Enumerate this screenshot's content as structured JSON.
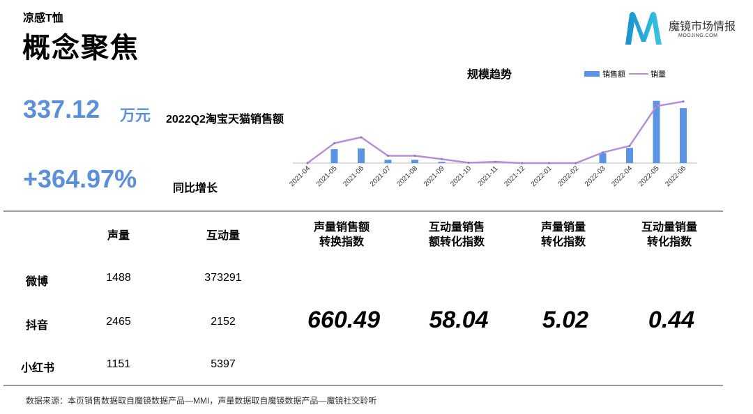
{
  "header": {
    "subtitle": "凉感T恤",
    "title": "概念聚焦"
  },
  "logo": {
    "name": "魔镜市场情报",
    "url": "MOOJING.COM"
  },
  "kpi": {
    "sales_value": "337.12",
    "sales_unit": "万元",
    "sales_label": "2022Q2淘宝天猫销售额",
    "yoy_value": "+364.97%",
    "yoy_label": "同比增长"
  },
  "chart_data": {
    "type": "bar+line",
    "title": "规模趋势",
    "legend_position": "top-right",
    "grid": false,
    "categories": [
      "2021-04",
      "2021-05",
      "2021-06",
      "2021-07",
      "2021-08",
      "2021-09",
      "2021-10",
      "2021-11",
      "2021-12",
      "2022-01",
      "2022-02",
      "2022-03",
      "2022-04",
      "2022-05",
      "2022-06"
    ],
    "series": [
      {
        "name": "销售额",
        "type": "bar",
        "color": "#5b94e3",
        "values": [
          0,
          21,
          22,
          5,
          5,
          2,
          0,
          0,
          0,
          0,
          0,
          15,
          23,
          94,
          83
        ]
      },
      {
        "name": "销量",
        "type": "line",
        "color": "#b58fd6",
        "values": [
          0,
          30,
          39,
          11,
          11,
          6,
          0.5,
          2,
          0,
          0,
          0,
          16,
          26,
          86,
          93
        ]
      }
    ]
  },
  "table": {
    "headers": [
      "声量",
      "互动量"
    ],
    "rows": [
      {
        "platform": "微博",
        "volume": "1488",
        "interaction": "373291"
      },
      {
        "platform": "抖音",
        "volume": "2465",
        "interaction": "2152"
      },
      {
        "platform": "小红书",
        "volume": "1151",
        "interaction": "5397"
      }
    ]
  },
  "indices": [
    {
      "label1": "声量销售额",
      "label2": "转换指数",
      "value": "660.49"
    },
    {
      "label1": "互动量销售",
      "label2": "额转化指数",
      "value": "58.04"
    },
    {
      "label1": "声量销量",
      "label2": "转化指数",
      "value": "5.02"
    },
    {
      "label1": "互动量销量",
      "label2": "转化指数",
      "value": "0.44"
    }
  ],
  "footer": "数据来源：本页销售数据取自魔镜数据产品—MMI，声量数据取自魔镜数据产品—魔镜社交聆听"
}
